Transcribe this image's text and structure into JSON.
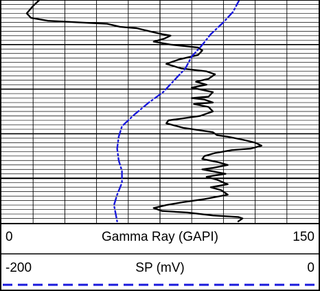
{
  "chart_data": {
    "type": "line",
    "track": "well log",
    "depth_axis": "increasing downward",
    "grid": true,
    "series": [
      {
        "name": "Gamma Ray (GAPI)",
        "unit": "GAPI",
        "scale_min": 0,
        "scale_max": 150,
        "color": "#000000",
        "line_style": "solid",
        "points": [
          [
            18,
            0.0
          ],
          [
            15,
            0.04
          ],
          [
            12,
            0.09
          ],
          [
            14,
            0.12
          ],
          [
            22,
            0.14
          ],
          [
            36,
            0.15
          ],
          [
            50,
            0.16
          ],
          [
            56,
            0.18
          ],
          [
            64,
            0.19
          ],
          [
            70,
            0.21
          ],
          [
            76,
            0.23
          ],
          [
            80,
            0.24
          ],
          [
            77,
            0.26
          ],
          [
            72,
            0.28
          ],
          [
            80,
            0.3
          ],
          [
            93,
            0.32
          ],
          [
            95,
            0.34
          ],
          [
            93,
            0.37
          ],
          [
            84,
            0.4
          ],
          [
            78,
            0.43
          ],
          [
            85,
            0.46
          ],
          [
            97,
            0.48
          ],
          [
            101,
            0.5
          ],
          [
            98,
            0.53
          ],
          [
            92,
            0.55
          ],
          [
            97,
            0.57
          ],
          [
            90,
            0.59
          ],
          [
            100,
            0.62
          ],
          [
            98,
            0.65
          ],
          [
            90,
            0.66
          ],
          [
            96,
            0.67
          ],
          [
            100,
            0.69
          ],
          [
            91,
            0.7
          ],
          [
            98,
            0.72
          ],
          [
            100,
            0.75
          ],
          [
            94,
            0.78
          ],
          [
            79,
            0.81
          ],
          [
            78,
            0.83
          ],
          [
            86,
            0.86
          ],
          [
            100,
            0.89
          ],
          [
            102,
            0.91
          ],
          [
            107,
            0.92
          ],
          [
            114,
            0.94
          ],
          [
            120,
            0.96
          ],
          [
            123,
            0.98
          ],
          [
            118,
            1.0
          ],
          [
            109,
            1.01
          ],
          [
            101,
            1.03
          ],
          [
            96,
            1.05
          ],
          [
            95,
            1.07
          ],
          [
            102,
            1.09
          ],
          [
            107,
            1.11
          ],
          [
            100,
            1.13
          ],
          [
            95,
            1.14
          ],
          [
            106,
            1.17
          ],
          [
            97,
            1.19
          ],
          [
            102,
            1.21
          ],
          [
            107,
            1.24
          ],
          [
            99,
            1.26
          ],
          [
            104,
            1.28
          ],
          [
            107,
            1.31
          ],
          [
            96,
            1.34
          ],
          [
            86,
            1.36
          ],
          [
            78,
            1.38
          ],
          [
            72,
            1.4
          ],
          [
            76,
            1.42
          ],
          [
            88,
            1.43
          ],
          [
            100,
            1.45
          ],
          [
            112,
            1.46
          ],
          [
            114,
            1.47
          ],
          [
            112,
            1.49
          ]
        ]
      },
      {
        "name": "SP (mV)",
        "unit": "mV",
        "scale_min": -200,
        "scale_max": 0,
        "color": "#1a1adc",
        "line_style": "dash-dot",
        "points": [
          [
            -50,
            0.0
          ],
          [
            -54,
            0.08
          ],
          [
            -60,
            0.15
          ],
          [
            -68,
            0.23
          ],
          [
            -74,
            0.31
          ],
          [
            -80,
            0.38
          ],
          [
            -84,
            0.46
          ],
          [
            -91,
            0.54
          ],
          [
            -98,
            0.62
          ],
          [
            -107,
            0.69
          ],
          [
            -116,
            0.77
          ],
          [
            -124,
            0.85
          ],
          [
            -126,
            0.92
          ],
          [
            -127,
            1.0
          ],
          [
            -126,
            1.08
          ],
          [
            -124,
            1.15
          ],
          [
            -124,
            1.23
          ],
          [
            -127,
            1.31
          ],
          [
            -129,
            1.38
          ],
          [
            -127,
            1.49
          ]
        ]
      }
    ],
    "gr_header": {
      "min": "0",
      "name": "Gamma Ray (GAPI)",
      "max": "150"
    },
    "sp_header": {
      "min": "-200",
      "name": "SP (mV)",
      "max": "0"
    }
  }
}
